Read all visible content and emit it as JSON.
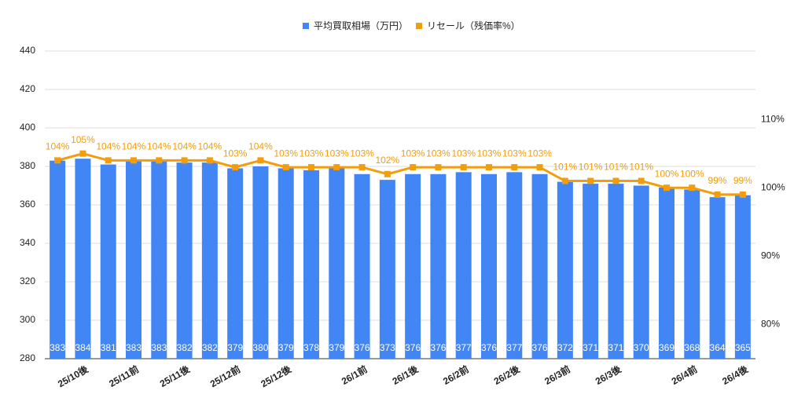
{
  "chart_data": {
    "type": "bar-line",
    "categories": [
      null,
      "25/10後",
      null,
      "25/11前",
      null,
      "25/11後",
      null,
      "25/12前",
      null,
      "25/12後",
      null,
      null,
      "26/1前",
      null,
      "26/1後",
      null,
      "26/2前",
      null,
      "26/2後",
      null,
      "26/3前",
      null,
      "26/3後",
      null,
      null,
      "26/4前",
      null,
      "26/4後"
    ],
    "series": [
      {
        "name": "平均買取相場（万円）",
        "color": "#4285f4",
        "type": "bar",
        "values": [
          383,
          384,
          381,
          383,
          383,
          382,
          382,
          379,
          380,
          379,
          378,
          379,
          376,
          373,
          376,
          376,
          377,
          376,
          377,
          376,
          372,
          371,
          371,
          370,
          369,
          368,
          364,
          365
        ]
      },
      {
        "name": "リセール（残価率%）",
        "color": "#f29d0c",
        "type": "line",
        "axis": "y2",
        "values": [
          104,
          105,
          104,
          104,
          104,
          104,
          104,
          103,
          104,
          103,
          103,
          103,
          103,
          102,
          103,
          103,
          103,
          103,
          103,
          103,
          101,
          101,
          101,
          101,
          100,
          100,
          99,
          99
        ],
        "value_labels": [
          "104%",
          "105%",
          "104%",
          "104%",
          "104%",
          "104%",
          "104%",
          "103%",
          "104%",
          "103%",
          "103%",
          "103%",
          "103%",
          "102%",
          "103%",
          "103%",
          "103%",
          "103%",
          "103%",
          "103%",
          "101%",
          "101%",
          "101%",
          "101%",
          "100%",
          "100%",
          "99%",
          "99%"
        ]
      }
    ],
    "ylim": [
      280,
      440
    ],
    "yticks": [
      280,
      300,
      320,
      340,
      360,
      380,
      400,
      420,
      440
    ],
    "y2lim": [
      75,
      120
    ],
    "y2ticks": [
      {
        "value": 80,
        "label": "80%"
      },
      {
        "value": 90,
        "label": "90%"
      },
      {
        "value": 100,
        "label": "100%"
      },
      {
        "value": 110,
        "label": "110%"
      }
    ],
    "grid": true
  }
}
